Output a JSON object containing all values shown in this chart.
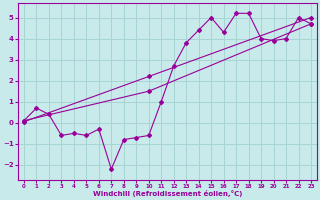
{
  "xlabel": "Windchill (Refroidissement éolien,°C)",
  "background_color": "#c8eaea",
  "grid_color": "#a8d4d4",
  "line_color": "#990099",
  "xlim": [
    -0.5,
    23.5
  ],
  "ylim": [
    -2.7,
    5.7
  ],
  "xticks": [
    0,
    1,
    2,
    3,
    4,
    5,
    6,
    7,
    8,
    9,
    10,
    11,
    12,
    13,
    14,
    15,
    16,
    17,
    18,
    19,
    20,
    21,
    22,
    23
  ],
  "yticks": [
    -2,
    -1,
    0,
    1,
    2,
    3,
    4,
    5
  ],
  "series1_x": [
    0,
    1,
    2,
    3,
    4,
    5,
    6,
    7,
    8,
    9,
    10,
    11,
    12,
    13,
    14,
    15,
    16,
    17,
    18,
    19,
    20,
    21,
    22,
    23
  ],
  "series1_y": [
    0.1,
    0.7,
    0.4,
    -0.6,
    -0.5,
    -0.6,
    -0.3,
    -2.2,
    -0.8,
    -0.7,
    -0.6,
    1.0,
    2.7,
    3.8,
    4.4,
    5.0,
    4.3,
    5.2,
    5.2,
    4.0,
    3.9,
    4.0,
    5.0,
    4.7
  ],
  "series2_x": [
    0,
    10,
    23
  ],
  "series2_y": [
    0.1,
    1.5,
    4.7
  ],
  "series3_x": [
    0,
    10,
    23
  ],
  "series3_y": [
    0.05,
    2.2,
    5.0
  ]
}
